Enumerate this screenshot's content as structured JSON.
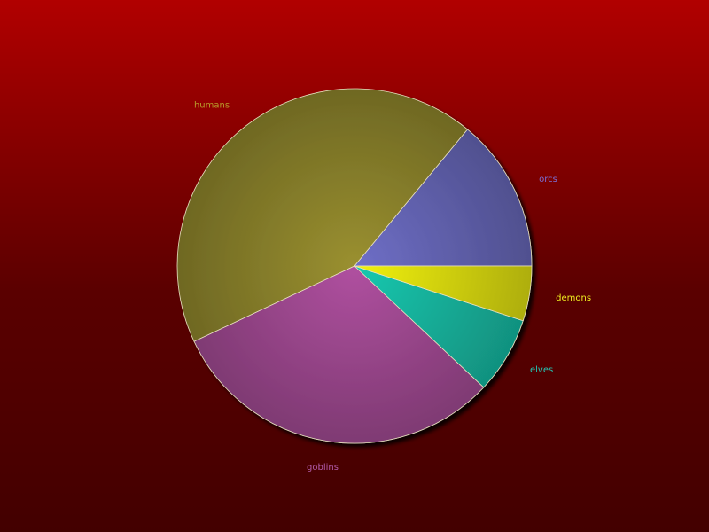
{
  "chart_data": {
    "type": "pie",
    "title": "",
    "start_angle_deg": 0,
    "direction": "counterclockwise",
    "slices": [
      {
        "label": "orcs",
        "value": 14,
        "color": "#6f6fc7",
        "label_color": "#7b6fd6"
      },
      {
        "label": "humans",
        "value": 43,
        "color": "#9a9030",
        "label_color": "#b89a2a"
      },
      {
        "label": "goblins",
        "value": 31,
        "color": "#b050a0",
        "label_color": "#b25aa8"
      },
      {
        "label": "elves",
        "value": 7,
        "color": "#18c9b0",
        "label_color": "#23c9b6"
      },
      {
        "label": "demons",
        "value": 5,
        "color": "#f2f210",
        "label_color": "#f0ee20"
      }
    ]
  }
}
